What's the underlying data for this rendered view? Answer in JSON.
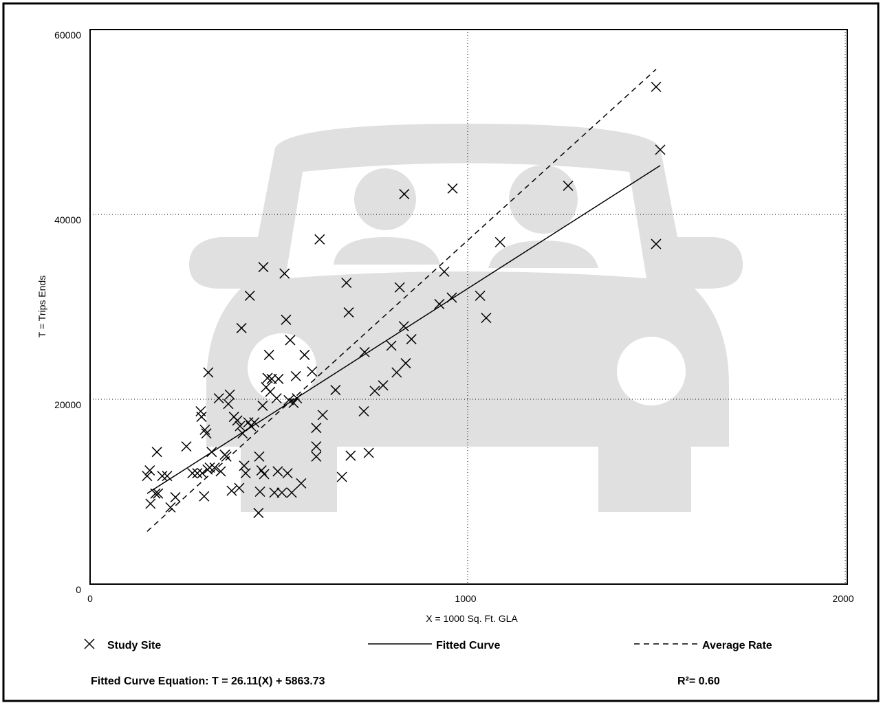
{
  "chart_data": {
    "type": "scatter",
    "x_label": "X = 1000 Sq. Ft. GLA",
    "y_label": "T = Trips Ends",
    "xlim": [
      0,
      2000
    ],
    "xticks": [
      0,
      1000,
      2000
    ],
    "ylim": [
      0,
      60000
    ],
    "yticks": [
      0,
      20000,
      40000,
      60000
    ],
    "grid": true,
    "series": [
      {
        "name": "Study Site",
        "color": "#000000",
        "marker": "x",
        "x": [
          151,
          158,
          173,
          160,
          177,
          180,
          191,
          204,
          213,
          226,
          255,
          271,
          284,
          293,
          295,
          297,
          302,
          304,
          308,
          311,
          313,
          317,
          322,
          330,
          341,
          346,
          357,
          361,
          366,
          370,
          375,
          381,
          390,
          395,
          397,
          401,
          404,
          408,
          412,
          419,
          423,
          426,
          435,
          446,
          448,
          450,
          454,
          457,
          459,
          461,
          466,
          470,
          474,
          477,
          481,
          488,
          494,
          497,
          499,
          508,
          515,
          519,
          523,
          526,
          530,
          534,
          539,
          545,
          548,
          559,
          568,
          588,
          599,
          599,
          599,
          608,
          616,
          650,
          667,
          679,
          685,
          690,
          725,
          727,
          738,
          754,
          776,
          798,
          812,
          820,
          831,
          832,
          836,
          851,
          925,
          938,
          958,
          960,
          1033,
          1049,
          1086,
          1266,
          1499,
          1510,
          1499
        ],
        "values": [
          11700,
          12300,
          9800,
          8700,
          14300,
          9800,
          11700,
          11700,
          8300,
          9400,
          14900,
          12000,
          12000,
          18700,
          18100,
          12000,
          9500,
          16700,
          16300,
          12400,
          22900,
          12600,
          14300,
          12600,
          20100,
          12200,
          14000,
          13800,
          19500,
          20500,
          10100,
          18100,
          17700,
          10400,
          17100,
          27700,
          16300,
          12800,
          12000,
          17500,
          31200,
          17100,
          17500,
          7700,
          13800,
          10000,
          12300,
          19300,
          34300,
          11900,
          21300,
          22300,
          24800,
          20800,
          22200,
          9900,
          20100,
          12200,
          22200,
          9900,
          33600,
          28600,
          12000,
          19900,
          26400,
          9900,
          19600,
          22500,
          20100,
          10900,
          24800,
          23000,
          16900,
          14900,
          13800,
          37300,
          18300,
          21000,
          11600,
          32600,
          29400,
          13900,
          18700,
          25100,
          14200,
          20900,
          21500,
          25800,
          22900,
          32100,
          27900,
          42200,
          23900,
          26500,
          30300,
          33800,
          31000,
          42800,
          31200,
          28800,
          37000,
          43100,
          53800,
          47000,
          36800
        ]
      },
      {
        "name": "Fitted Curve",
        "color": "#000000",
        "line_style": "solid",
        "x": [
          151,
          1510
        ],
        "values": [
          9806.34,
          45289.83
        ]
      },
      {
        "name": "Average Rate",
        "color": "#000000",
        "line_style": "dashed",
        "x": [
          151,
          1499
        ],
        "values": [
          5700,
          55700
        ]
      }
    ],
    "equation": "Fitted Curve Equation: T = 26.11(X) + 5863.73",
    "r_squared": "R²= 0.60"
  }
}
